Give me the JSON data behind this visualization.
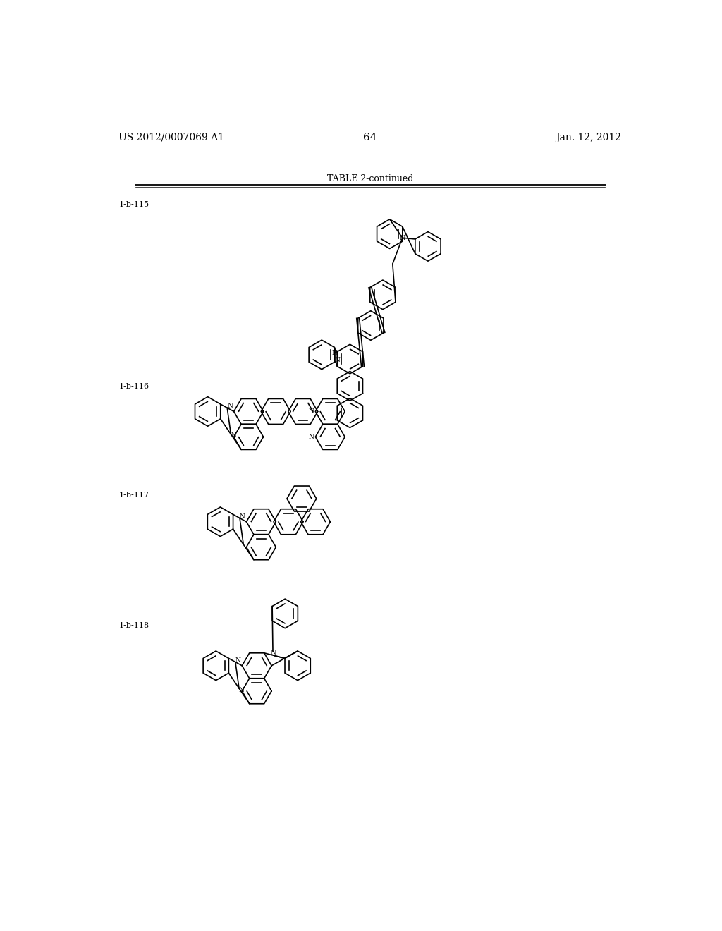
{
  "background_color": "#ffffff",
  "page_header_left": "US 2012/0007069 A1",
  "page_header_right": "Jan. 12, 2012",
  "page_number": "64",
  "table_title": "TABLE 2-continued",
  "labels": [
    "1-b-115",
    "1-b-116",
    "1-b-117",
    "1-b-118"
  ],
  "text_color": "#000000",
  "font_size_header": 10,
  "font_size_label": 8,
  "font_size_title": 9,
  "font_size_page": 11
}
